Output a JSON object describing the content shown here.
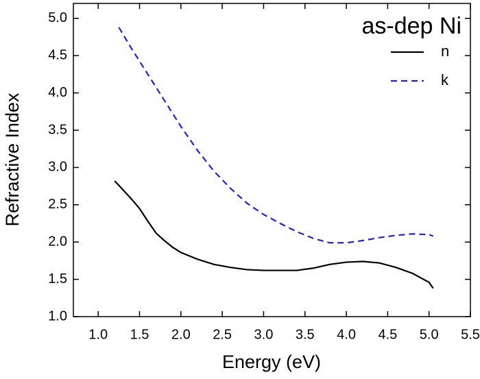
{
  "chart_data": {
    "type": "line",
    "title": "as-dep Ni",
    "x_label": "Energy (eV)",
    "y_label": "Refractive Index",
    "xlim": [
      0.7,
      5.5
    ],
    "ylim": [
      1.0,
      5.2
    ],
    "xticks": [
      {
        "value": 1,
        "label": "1.0"
      },
      1.5,
      {
        "value": 2,
        "label": "2.0"
      },
      2.5,
      {
        "value": 3,
        "label": "3.0"
      },
      3.5,
      {
        "value": 4,
        "label": "4.0"
      },
      4.5,
      {
        "value": 5,
        "label": "5.0"
      },
      5.5
    ],
    "yticks": [
      {
        "value": 1,
        "label": "1.0"
      },
      1.5,
      {
        "value": 2,
        "label": "2.0"
      },
      2.5,
      {
        "value": 3,
        "label": "3.0"
      },
      3.5,
      {
        "value": 4,
        "label": "4.0"
      },
      4.5,
      {
        "value": 5,
        "label": "5.0"
      }
    ],
    "grid": false,
    "legend": "top-right",
    "series": [
      {
        "name": "n",
        "color": "#000000",
        "dash": false,
        "x": [
          1.2,
          1.3,
          1.4,
          1.5,
          1.6,
          1.7,
          1.8,
          1.9,
          2.0,
          2.2,
          2.4,
          2.6,
          2.8,
          3.0,
          3.2,
          3.4,
          3.6,
          3.8,
          4.0,
          4.2,
          4.4,
          4.6,
          4.8,
          5.0,
          5.05
        ],
        "values": [
          2.82,
          2.7,
          2.58,
          2.45,
          2.28,
          2.12,
          2.02,
          1.93,
          1.86,
          1.77,
          1.7,
          1.66,
          1.63,
          1.62,
          1.62,
          1.62,
          1.65,
          1.7,
          1.73,
          1.74,
          1.72,
          1.66,
          1.58,
          1.46,
          1.38
        ]
      },
      {
        "name": "k",
        "color": "#1f1fdd",
        "dash": true,
        "x": [
          1.25,
          1.4,
          1.6,
          1.8,
          2.0,
          2.2,
          2.4,
          2.6,
          2.8,
          3.0,
          3.2,
          3.4,
          3.6,
          3.8,
          4.0,
          4.2,
          4.4,
          4.6,
          4.8,
          5.0,
          5.05
        ],
        "values": [
          4.88,
          4.6,
          4.25,
          3.9,
          3.55,
          3.23,
          2.95,
          2.72,
          2.52,
          2.37,
          2.25,
          2.14,
          2.05,
          1.99,
          1.99,
          2.02,
          2.06,
          2.09,
          2.11,
          2.1,
          2.08
        ]
      }
    ]
  }
}
